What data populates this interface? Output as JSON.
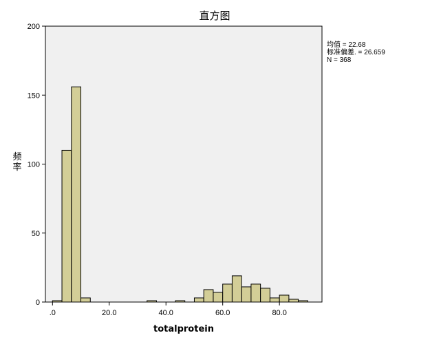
{
  "chart_data": {
    "type": "bar",
    "title": "直方图",
    "xlabel": "totalprotein",
    "ylabel": "频率",
    "xlim": [
      -2.5,
      95
    ],
    "ylim": [
      0,
      200
    ],
    "x_ticks": [
      ".0",
      "20.0",
      "40.0",
      "60.0",
      "80.0"
    ],
    "y_ticks": [
      "0",
      "50",
      "100",
      "150",
      "200"
    ],
    "bin_width": 3.33,
    "bins": [
      {
        "start": 0.0,
        "count": 1
      },
      {
        "start": 3.33,
        "count": 110
      },
      {
        "start": 6.67,
        "count": 156
      },
      {
        "start": 10.0,
        "count": 3
      },
      {
        "start": 33.33,
        "count": 1
      },
      {
        "start": 43.33,
        "count": 1
      },
      {
        "start": 50.0,
        "count": 3
      },
      {
        "start": 53.33,
        "count": 9
      },
      {
        "start": 56.67,
        "count": 7
      },
      {
        "start": 60.0,
        "count": 13
      },
      {
        "start": 63.33,
        "count": 19
      },
      {
        "start": 66.67,
        "count": 11
      },
      {
        "start": 70.0,
        "count": 13
      },
      {
        "start": 73.33,
        "count": 10
      },
      {
        "start": 76.67,
        "count": 3
      },
      {
        "start": 80.0,
        "count": 5
      },
      {
        "start": 83.33,
        "count": 2
      },
      {
        "start": 86.67,
        "count": 1
      }
    ],
    "bar_color": "#d3ce97",
    "bar_edge_color": "#000000",
    "plot_background": "#f0f0f0",
    "grid": false,
    "legend": "none",
    "stats": {
      "mean": "均值 = 22.68",
      "std": "标准偏差. = 26.659",
      "n": "N = 368"
    }
  }
}
